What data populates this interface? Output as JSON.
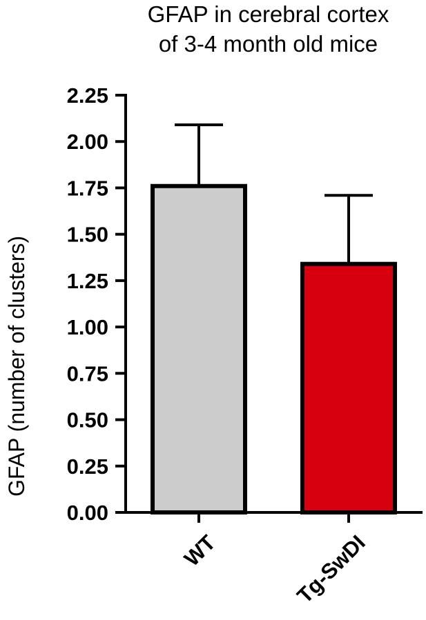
{
  "chart_data": {
    "type": "bar",
    "title": [
      "GFAP in cerebral cortex",
      "of 3-4 month old mice"
    ],
    "xlabel": "",
    "ylabel": "GFAP (number of clusters)",
    "categories": [
      "WT",
      "Tg-SwDI"
    ],
    "values": [
      1.76,
      1.34
    ],
    "error_bars": [
      0.33,
      0.37
    ],
    "ylim": [
      0,
      2.25
    ],
    "yticks": [
      0,
      0.25,
      0.5,
      0.75,
      1.0,
      1.25,
      1.5,
      1.75,
      2.0,
      2.25
    ],
    "ytick_labels": [
      "0.00",
      "0.25",
      "0.50",
      "0.75",
      "1.00",
      "1.25",
      "1.50",
      "1.75",
      "2.00",
      "2.25"
    ],
    "bar_colors": [
      "#cccccc",
      "#d7000f"
    ],
    "grid": false,
    "legend": "none"
  }
}
